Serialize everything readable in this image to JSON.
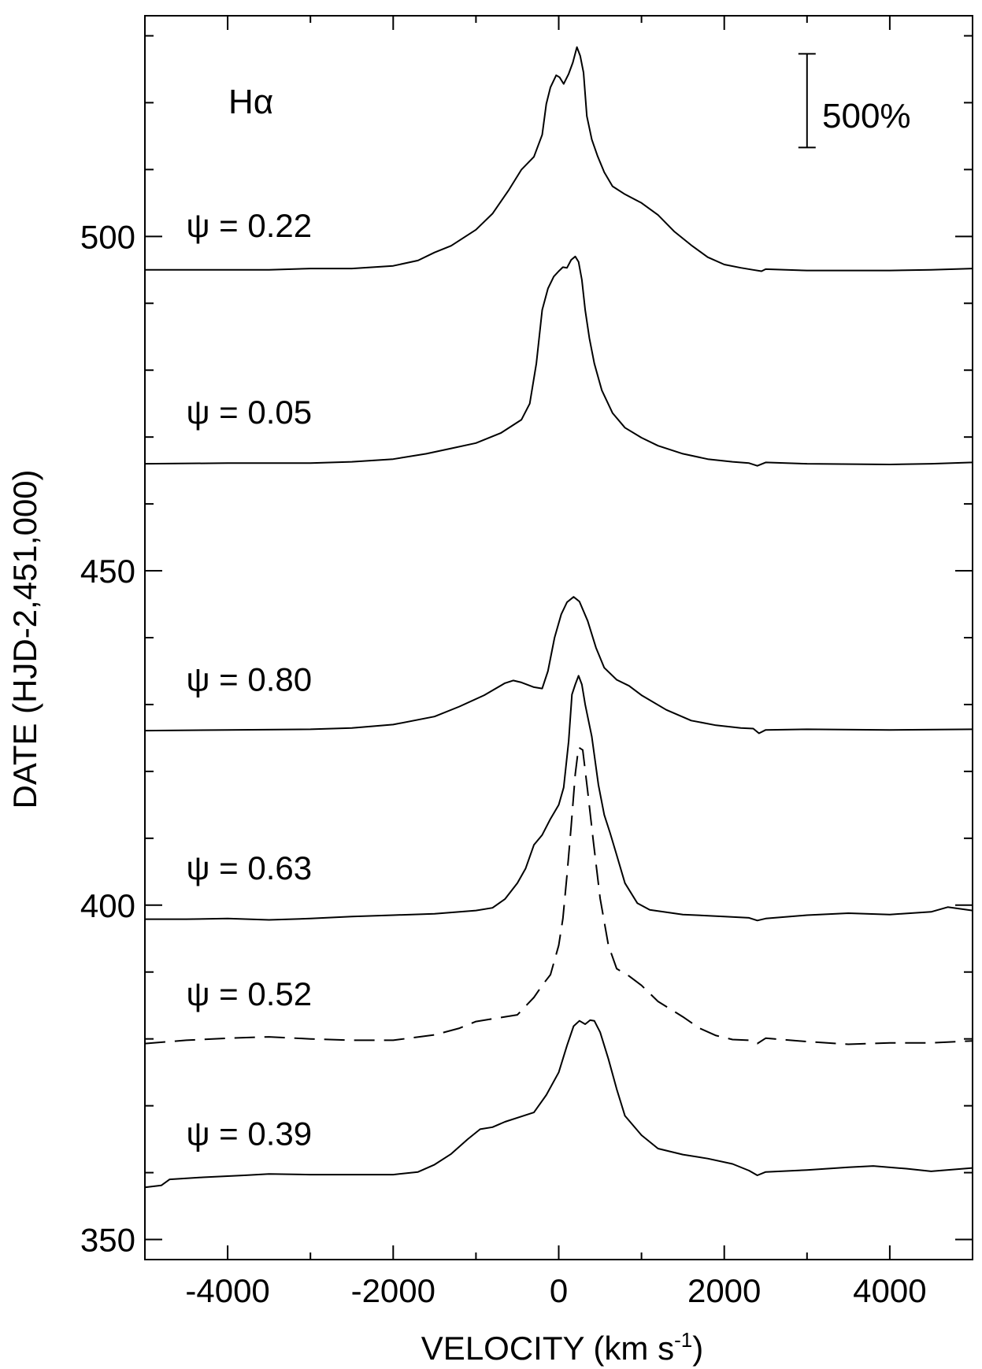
{
  "chart_data": {
    "type": "line",
    "title": "",
    "xlabel": "VELOCITY (km s",
    "xlabel_sup": "-1",
    "xlabel_end": ")",
    "ylabel": "DATE (HJD-2,451,000)",
    "xlim": [
      -5000,
      5000
    ],
    "ylim": [
      347,
      533
    ],
    "x_ticks": [
      -4000,
      -2000,
      0,
      2000,
      4000
    ],
    "x_tick_labels": [
      "-4000",
      "-2000",
      "0",
      "2000",
      "4000"
    ],
    "y_ticks": [
      350,
      400,
      450,
      500
    ],
    "y_tick_labels": [
      "350",
      "400",
      "450",
      "500"
    ],
    "grid": false,
    "line_label": "Hα",
    "scale_bar_label": "500%",
    "scale_bar": {
      "x": 3000,
      "y_bottom": 513.3,
      "y_top": 527.3
    },
    "series": [
      {
        "label": "ψ = 0.22",
        "style": "solid",
        "label_pos": [
          -4500,
          501.7
        ],
        "points": [
          [
            -5000,
            495.0
          ],
          [
            -4500,
            495.0
          ],
          [
            -4000,
            495.0
          ],
          [
            -3500,
            495.0
          ],
          [
            -3000,
            495.2
          ],
          [
            -2500,
            495.2
          ],
          [
            -2000,
            495.6
          ],
          [
            -1700,
            496.4
          ],
          [
            -1500,
            497.6
          ],
          [
            -1300,
            498.6
          ],
          [
            -1000,
            501.0
          ],
          [
            -800,
            503.4
          ],
          [
            -600,
            507.0
          ],
          [
            -450,
            510.0
          ],
          [
            -300,
            511.9
          ],
          [
            -200,
            515.2
          ],
          [
            -150,
            519.8
          ],
          [
            -100,
            522.3
          ],
          [
            -30,
            524.1
          ],
          [
            10,
            523.8
          ],
          [
            60,
            522.8
          ],
          [
            120,
            524.3
          ],
          [
            170,
            526.0
          ],
          [
            220,
            528.3
          ],
          [
            260,
            527.0
          ],
          [
            300,
            524.5
          ],
          [
            340,
            518.0
          ],
          [
            400,
            514.5
          ],
          [
            470,
            512.0
          ],
          [
            550,
            509.6
          ],
          [
            650,
            507.5
          ],
          [
            800,
            506.3
          ],
          [
            1000,
            505.0
          ],
          [
            1200,
            503.2
          ],
          [
            1400,
            500.7
          ],
          [
            1600,
            498.7
          ],
          [
            1800,
            496.9
          ],
          [
            2000,
            495.8
          ],
          [
            2200,
            495.3
          ],
          [
            2350,
            495.0
          ],
          [
            2450,
            494.8
          ],
          [
            2500,
            495.1
          ],
          [
            3000,
            494.9
          ],
          [
            3500,
            494.9
          ],
          [
            4000,
            494.9
          ],
          [
            4500,
            495.0
          ],
          [
            5000,
            495.2
          ]
        ]
      },
      {
        "label": "ψ = 0.05",
        "style": "solid",
        "label_pos": [
          -4500,
          473.8
        ],
        "points": [
          [
            -5000,
            466.0
          ],
          [
            -4000,
            466.1
          ],
          [
            -3000,
            466.1
          ],
          [
            -2500,
            466.3
          ],
          [
            -2000,
            466.7
          ],
          [
            -1600,
            467.5
          ],
          [
            -1300,
            468.3
          ],
          [
            -1000,
            469.1
          ],
          [
            -700,
            470.6
          ],
          [
            -450,
            472.6
          ],
          [
            -350,
            475.0
          ],
          [
            -270,
            481.0
          ],
          [
            -200,
            489.0
          ],
          [
            -130,
            492.2
          ],
          [
            -60,
            494.0
          ],
          [
            0,
            494.8
          ],
          [
            50,
            495.4
          ],
          [
            100,
            495.3
          ],
          [
            150,
            496.5
          ],
          [
            200,
            497.0
          ],
          [
            240,
            496.2
          ],
          [
            280,
            493.5
          ],
          [
            320,
            489.0
          ],
          [
            370,
            484.8
          ],
          [
            430,
            481.0
          ],
          [
            520,
            477.0
          ],
          [
            650,
            473.6
          ],
          [
            800,
            471.4
          ],
          [
            1000,
            469.9
          ],
          [
            1200,
            468.7
          ],
          [
            1500,
            467.5
          ],
          [
            1800,
            466.7
          ],
          [
            2100,
            466.3
          ],
          [
            2300,
            466.1
          ],
          [
            2400,
            465.7
          ],
          [
            2500,
            466.2
          ],
          [
            3000,
            466.0
          ],
          [
            4000,
            465.9
          ],
          [
            4500,
            466.0
          ],
          [
            5000,
            466.2
          ]
        ]
      },
      {
        "label": "ψ = 0.80",
        "style": "solid",
        "label_pos": [
          -4500,
          433.8
        ],
        "points": [
          [
            -5000,
            426.1
          ],
          [
            -4000,
            426.2
          ],
          [
            -3000,
            426.3
          ],
          [
            -2500,
            426.5
          ],
          [
            -2000,
            427.0
          ],
          [
            -1500,
            428.2
          ],
          [
            -1200,
            429.7
          ],
          [
            -900,
            431.4
          ],
          [
            -650,
            433.2
          ],
          [
            -550,
            433.6
          ],
          [
            -450,
            433.3
          ],
          [
            -300,
            432.6
          ],
          [
            -200,
            432.4
          ],
          [
            -130,
            435.0
          ],
          [
            -50,
            440.0
          ],
          [
            30,
            443.5
          ],
          [
            100,
            445.3
          ],
          [
            180,
            446.1
          ],
          [
            250,
            445.4
          ],
          [
            350,
            442.5
          ],
          [
            450,
            438.5
          ],
          [
            550,
            435.5
          ],
          [
            700,
            433.7
          ],
          [
            850,
            432.8
          ],
          [
            1000,
            431.4
          ],
          [
            1300,
            429.2
          ],
          [
            1600,
            427.6
          ],
          [
            1900,
            426.9
          ],
          [
            2200,
            426.5
          ],
          [
            2350,
            426.4
          ],
          [
            2420,
            425.7
          ],
          [
            2500,
            426.2
          ],
          [
            3000,
            426.3
          ],
          [
            4000,
            426.2
          ],
          [
            5000,
            426.3
          ]
        ]
      },
      {
        "label": "ψ = 0.63",
        "style": "solid",
        "label_pos": [
          -4500,
          405.6
        ],
        "points": [
          [
            -5000,
            397.9
          ],
          [
            -4500,
            397.9
          ],
          [
            -4000,
            398.0
          ],
          [
            -3500,
            397.8
          ],
          [
            -3000,
            398.0
          ],
          [
            -2500,
            398.3
          ],
          [
            -2000,
            398.5
          ],
          [
            -1500,
            398.7
          ],
          [
            -1000,
            399.2
          ],
          [
            -800,
            399.6
          ],
          [
            -650,
            400.9
          ],
          [
            -500,
            403.3
          ],
          [
            -400,
            405.5
          ],
          [
            -300,
            409.0
          ],
          [
            -200,
            410.5
          ],
          [
            -100,
            412.9
          ],
          [
            0,
            415.0
          ],
          [
            60,
            417.6
          ],
          [
            120,
            424.5
          ],
          [
            160,
            431.5
          ],
          [
            200,
            433.0
          ],
          [
            240,
            434.3
          ],
          [
            280,
            433.0
          ],
          [
            320,
            430.0
          ],
          [
            400,
            425.2
          ],
          [
            480,
            418.0
          ],
          [
            550,
            413.5
          ],
          [
            620,
            410.8
          ],
          [
            700,
            407.5
          ],
          [
            800,
            403.3
          ],
          [
            950,
            400.3
          ],
          [
            1100,
            399.3
          ],
          [
            1500,
            398.6
          ],
          [
            2000,
            398.3
          ],
          [
            2300,
            398.1
          ],
          [
            2400,
            397.7
          ],
          [
            2500,
            398.0
          ],
          [
            3000,
            398.5
          ],
          [
            3500,
            398.8
          ],
          [
            4000,
            398.6
          ],
          [
            4500,
            399.0
          ],
          [
            4700,
            399.7
          ],
          [
            5000,
            399.2
          ]
        ]
      },
      {
        "label": "ψ = 0.52",
        "style": "dashed",
        "label_pos": [
          -4500,
          386.8
        ],
        "points": [
          [
            -5000,
            379.3
          ],
          [
            -4500,
            379.8
          ],
          [
            -4000,
            380.1
          ],
          [
            -3500,
            380.3
          ],
          [
            -3000,
            380.0
          ],
          [
            -2500,
            379.8
          ],
          [
            -2000,
            379.8
          ],
          [
            -1500,
            380.6
          ],
          [
            -1200,
            381.6
          ],
          [
            -1000,
            382.6
          ],
          [
            -700,
            383.2
          ],
          [
            -500,
            383.6
          ],
          [
            -300,
            386.2
          ],
          [
            -200,
            388.0
          ],
          [
            -100,
            389.6
          ],
          [
            0,
            394.0
          ],
          [
            50,
            398.0
          ],
          [
            100,
            404.5
          ],
          [
            150,
            411.8
          ],
          [
            200,
            419.6
          ],
          [
            240,
            423.6
          ],
          [
            290,
            423.2
          ],
          [
            350,
            417.0
          ],
          [
            420,
            409.4
          ],
          [
            500,
            401.0
          ],
          [
            600,
            394.0
          ],
          [
            700,
            390.5
          ],
          [
            850,
            389.4
          ],
          [
            1000,
            388.0
          ],
          [
            1200,
            385.6
          ],
          [
            1500,
            383.3
          ],
          [
            1700,
            381.6
          ],
          [
            1900,
            380.5
          ],
          [
            2100,
            379.9
          ],
          [
            2300,
            379.8
          ],
          [
            2400,
            379.3
          ],
          [
            2500,
            380.1
          ],
          [
            3000,
            379.6
          ],
          [
            3500,
            379.2
          ],
          [
            4000,
            379.4
          ],
          [
            4500,
            379.4
          ],
          [
            5000,
            379.7
          ]
        ]
      },
      {
        "label": "ψ = 0.39",
        "style": "solid",
        "label_pos": [
          -4500,
          365.9
        ],
        "points": [
          [
            -5000,
            357.8
          ],
          [
            -4800,
            358.1
          ],
          [
            -4700,
            359.0
          ],
          [
            -4300,
            359.3
          ],
          [
            -3800,
            359.6
          ],
          [
            -3500,
            359.8
          ],
          [
            -3000,
            359.7
          ],
          [
            -2500,
            359.7
          ],
          [
            -2000,
            359.7
          ],
          [
            -1700,
            360.1
          ],
          [
            -1500,
            361.2
          ],
          [
            -1300,
            362.8
          ],
          [
            -1100,
            365.0
          ],
          [
            -950,
            366.5
          ],
          [
            -800,
            366.8
          ],
          [
            -650,
            367.6
          ],
          [
            -450,
            368.4
          ],
          [
            -300,
            369.0
          ],
          [
            -150,
            371.6
          ],
          [
            0,
            375.0
          ],
          [
            100,
            379.0
          ],
          [
            180,
            381.9
          ],
          [
            250,
            382.7
          ],
          [
            320,
            382.2
          ],
          [
            380,
            382.8
          ],
          [
            430,
            382.7
          ],
          [
            500,
            381.0
          ],
          [
            600,
            377.0
          ],
          [
            700,
            372.5
          ],
          [
            800,
            368.5
          ],
          [
            1000,
            365.6
          ],
          [
            1200,
            363.6
          ],
          [
            1500,
            362.7
          ],
          [
            1800,
            362.1
          ],
          [
            2100,
            361.3
          ],
          [
            2300,
            360.3
          ],
          [
            2400,
            359.6
          ],
          [
            2500,
            360.1
          ],
          [
            3000,
            360.4
          ],
          [
            3500,
            360.8
          ],
          [
            3800,
            361.0
          ],
          [
            4200,
            360.6
          ],
          [
            4500,
            360.2
          ],
          [
            5000,
            360.7
          ]
        ]
      }
    ]
  }
}
